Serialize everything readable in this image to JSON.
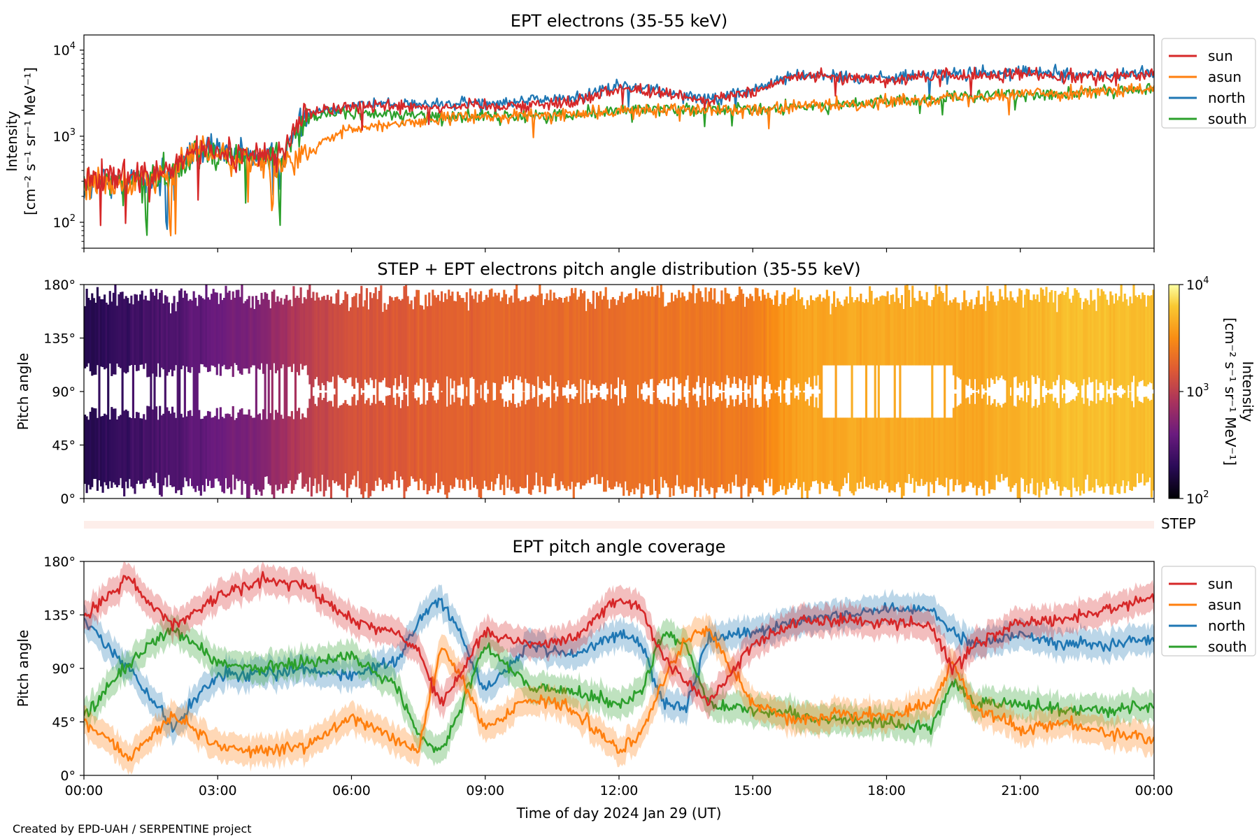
{
  "figure": {
    "footer": "Created by EPD-UAH / SERPENTINE project",
    "xlabel": "Time of day 2024 Jan 29 (UT)",
    "x_ticks": [
      "00:00",
      "03:00",
      "06:00",
      "09:00",
      "12:00",
      "15:00",
      "18:00",
      "21:00",
      "00:00"
    ]
  },
  "chart_data": [
    {
      "type": "line",
      "title": "EPT electrons (35-55 keV)",
      "ylabel_line1": "Intensity",
      "ylabel_line2": "[cm⁻² s⁻¹ sr⁻¹ MeV⁻¹]",
      "y_scale": "log",
      "ylim": [
        50,
        15000
      ],
      "y_ticks": [
        {
          "value": 100,
          "base": "10",
          "exp": "2"
        },
        {
          "value": 1000,
          "base": "10",
          "exp": "3"
        },
        {
          "value": 10000,
          "base": "10",
          "exp": "4"
        }
      ],
      "x_unit": "hours",
      "xlim": [
        0,
        24
      ],
      "legend_position": "outside-right",
      "series": [
        {
          "name": "sun",
          "color": "#d62728",
          "x": [
            0,
            0.5,
            1,
            1.5,
            2,
            2.5,
            3,
            3.5,
            4,
            4.5,
            5,
            5.5,
            6,
            7,
            8,
            9,
            10,
            11,
            12,
            13,
            14,
            15,
            16,
            17,
            18,
            19,
            20,
            21,
            22,
            23,
            24
          ],
          "values": [
            300,
            320,
            350,
            330,
            400,
            700,
            650,
            600,
            620,
            580,
            1900,
            2100,
            2200,
            2300,
            2200,
            2300,
            2300,
            2500,
            3600,
            3200,
            2600,
            3200,
            5000,
            4800,
            4600,
            4900,
            5000,
            5200,
            5100,
            5000,
            5100
          ]
        },
        {
          "name": "asun",
          "color": "#ff7f0e",
          "x": [
            0,
            0.5,
            1,
            1.5,
            2,
            2.5,
            3,
            3.5,
            4,
            4.5,
            5,
            5.5,
            6,
            7,
            8,
            9,
            10,
            11,
            12,
            13,
            14,
            15,
            16,
            17,
            18,
            19,
            20,
            21,
            22,
            23,
            24
          ],
          "values": [
            280,
            300,
            330,
            320,
            380,
            650,
            620,
            580,
            500,
            450,
            600,
            900,
            1200,
            1400,
            1600,
            1700,
            1700,
            1800,
            1900,
            2100,
            2100,
            2000,
            2200,
            2300,
            2500,
            2700,
            2900,
            3100,
            3200,
            3300,
            3500
          ]
        },
        {
          "name": "north",
          "color": "#1f77b4",
          "x": [
            0,
            0.5,
            1,
            1.5,
            2,
            2.5,
            3,
            3.5,
            4,
            4.5,
            5,
            5.5,
            6,
            7,
            8,
            9,
            10,
            11,
            12,
            13,
            14,
            15,
            16,
            17,
            18,
            19,
            20,
            21,
            22,
            23,
            24
          ],
          "values": [
            250,
            300,
            330,
            320,
            390,
            680,
            640,
            590,
            600,
            560,
            1800,
            2100,
            2300,
            2400,
            2300,
            2500,
            2600,
            2800,
            3800,
            3400,
            2700,
            3400,
            5200,
            5000,
            4800,
            5200,
            5300,
            5600,
            5300,
            5200,
            5400
          ]
        },
        {
          "name": "south",
          "color": "#2ca02c",
          "x": [
            0,
            0.5,
            1,
            1.5,
            2,
            2.5,
            3,
            3.5,
            4,
            4.5,
            5,
            5.5,
            6,
            7,
            8,
            9,
            10,
            11,
            12,
            13,
            14,
            15,
            16,
            17,
            18,
            19,
            20,
            21,
            22,
            23,
            24
          ],
          "values": [
            260,
            300,
            320,
            310,
            380,
            660,
            630,
            580,
            560,
            520,
            1700,
            1900,
            1800,
            1800,
            1700,
            1700,
            1700,
            1800,
            2000,
            2100,
            2100,
            2000,
            2200,
            2300,
            2500,
            2700,
            2900,
            3100,
            3200,
            3300,
            3500
          ]
        }
      ]
    },
    {
      "type": "heatmap",
      "title": "STEP + EPT electrons pitch angle distribution (35-55 keV)",
      "ylabel": "Pitch angle",
      "ylim": [
        0,
        180
      ],
      "y_ticks": [
        "0°",
        "45°",
        "90°",
        "135°",
        "180°"
      ],
      "colorbar": {
        "label_line1": "Intensity",
        "label_line2": "[cm⁻² s⁻¹ sr⁻¹ MeV⁻¹]",
        "scale": "log",
        "range": [
          100,
          10000
        ],
        "ticks": [
          {
            "value": 100,
            "base": "10",
            "exp": "2"
          },
          {
            "value": 1000,
            "base": "10",
            "exp": "3"
          },
          {
            "value": 10000,
            "base": "10",
            "exp": "4"
          }
        ],
        "colormap": "plasma/inferno-like"
      },
      "step_row_label": "STEP",
      "band_intensity": {
        "x": [
          0,
          2,
          4,
          5,
          6,
          8,
          10,
          12,
          14,
          15,
          16,
          18,
          20,
          22,
          24
        ],
        "values": [
          180,
          300,
          500,
          1000,
          1400,
          1700,
          1900,
          2100,
          2400,
          2500,
          4000,
          4500,
          4200,
          5500,
          5500
        ]
      }
    },
    {
      "type": "line",
      "title": "EPT pitch angle coverage",
      "ylabel": "Pitch angle",
      "ylim": [
        0,
        180
      ],
      "y_ticks": [
        "0°",
        "45°",
        "90°",
        "135°",
        "180°"
      ],
      "x_unit": "hours",
      "xlim": [
        0,
        24
      ],
      "legend_position": "outside-right",
      "series": [
        {
          "name": "sun",
          "color": "#d62728",
          "x": [
            0,
            1,
            2,
            3,
            4,
            5,
            6,
            7,
            7.5,
            8,
            8.5,
            9,
            10,
            11,
            12,
            12.5,
            13,
            13.5,
            14,
            15,
            16,
            17,
            18,
            19,
            19.5,
            20,
            21,
            22,
            23,
            24
          ],
          "values": [
            135,
            165,
            125,
            150,
            165,
            160,
            130,
            120,
            105,
            60,
            90,
            120,
            110,
            115,
            150,
            140,
            100,
            80,
            60,
            110,
            130,
            130,
            130,
            125,
            90,
            110,
            130,
            130,
            140,
            150
          ]
        },
        {
          "name": "asun",
          "color": "#ff7f0e",
          "x": [
            0,
            1,
            2,
            3,
            4,
            5,
            6,
            7,
            7.5,
            8,
            8.5,
            9,
            10,
            11,
            12,
            12.5,
            13,
            13.5,
            14,
            15,
            16,
            17,
            18,
            19,
            19.5,
            20,
            21,
            22,
            23,
            24
          ],
          "values": [
            45,
            15,
            50,
            25,
            20,
            25,
            50,
            30,
            20,
            110,
            80,
            40,
            65,
            55,
            20,
            35,
            80,
            115,
            125,
            60,
            45,
            50,
            50,
            60,
            95,
            55,
            40,
            45,
            35,
            30
          ]
        },
        {
          "name": "north",
          "color": "#1f77b4",
          "x": [
            0,
            1,
            2,
            3,
            4,
            5,
            6,
            7,
            7.5,
            8,
            8.5,
            9,
            10,
            11,
            12,
            12.5,
            13,
            13.5,
            14,
            15,
            16,
            17,
            18,
            19,
            19.5,
            20,
            21,
            22,
            23,
            24
          ],
          "values": [
            130,
            90,
            40,
            85,
            85,
            90,
            85,
            95,
            130,
            150,
            115,
            70,
            110,
            100,
            120,
            110,
            60,
            55,
            115,
            120,
            130,
            135,
            140,
            140,
            120,
            110,
            120,
            110,
            110,
            115
          ]
        },
        {
          "name": "south",
          "color": "#2ca02c",
          "x": [
            0,
            1,
            2,
            3,
            4,
            5,
            6,
            7,
            7.5,
            8,
            8.5,
            9,
            10,
            11,
            12,
            12.5,
            13,
            13.5,
            14,
            15,
            16,
            17,
            18,
            19,
            19.5,
            20,
            21,
            22,
            23,
            24
          ],
          "values": [
            50,
            95,
            125,
            95,
            90,
            95,
            100,
            75,
            35,
            20,
            60,
            110,
            75,
            70,
            60,
            70,
            120,
            110,
            60,
            55,
            50,
            45,
            45,
            40,
            80,
            60,
            60,
            55,
            55,
            60
          ]
        }
      ]
    }
  ]
}
